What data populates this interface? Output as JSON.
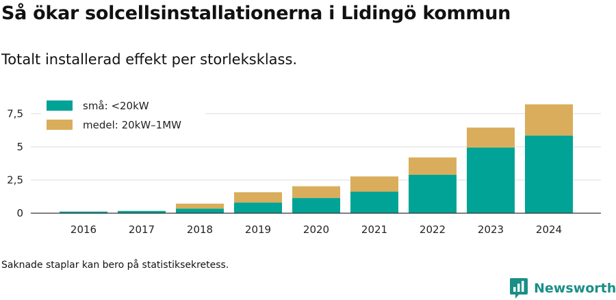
{
  "title": "Så ökar solcellsinstallationerna i Lidingö kommun",
  "subtitle": "Totalt installerad effekt per storleksklass.",
  "footnote": "Saknade staplar kan bero på statistiksekretess.",
  "brand": {
    "name": "Newsworthy",
    "logo_icon": "newsworthy-logo-icon"
  },
  "colors": {
    "small": "#00a396",
    "medium": "#d9ad5b",
    "grid": "#dddddd",
    "axis": "#333333",
    "brand": "#1a8f86"
  },
  "chart_data": {
    "type": "bar",
    "stacked": true,
    "categories": [
      "2016",
      "2017",
      "2018",
      "2019",
      "2020",
      "2021",
      "2022",
      "2023",
      "2024"
    ],
    "series": [
      {
        "name": "små: <20kW",
        "values": [
          0.12,
          0.17,
          0.35,
          0.8,
          1.15,
          1.62,
          2.9,
          4.95,
          5.85
        ]
      },
      {
        "name": "medel: 20kW–1MW",
        "values": [
          0.0,
          0.0,
          0.37,
          0.78,
          0.88,
          1.15,
          1.3,
          1.5,
          2.35
        ]
      }
    ],
    "y_ticks": [
      "0",
      "2,5",
      "5",
      "7,5"
    ],
    "ylim": [
      0,
      8.75
    ],
    "grid": true,
    "legend_position": "top-left"
  }
}
